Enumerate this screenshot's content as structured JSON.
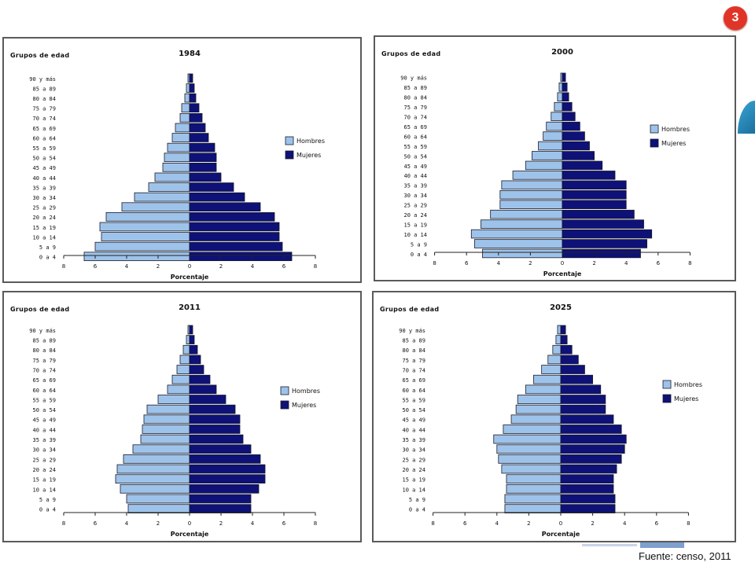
{
  "slide_number": "3",
  "source_note": "Fuente: censo, 2011",
  "colors": {
    "hombres": "#9ec3ea",
    "mujeres": "#0d1178",
    "edge": "#1a1a2a"
  },
  "chart_data": [
    {
      "type": "bar",
      "orientation": "horizontal-diverging",
      "title": "1984",
      "ylabel": "Grupos de edad",
      "xlabel": "Porcentaje",
      "xlim": [
        -8,
        8
      ],
      "x_tick_labels": [
        "8",
        "6",
        "4",
        "2",
        "0",
        "2",
        "4",
        "6",
        "8"
      ],
      "legend_position": "right",
      "categories": [
        "90 y más",
        "85 a 89",
        "80 a 84",
        "75 a 79",
        "70 a 74",
        "65 a 69",
        "60 a 64",
        "55 a 59",
        "50 a 54",
        "45 a 49",
        "40 a 44",
        "35 a 39",
        "30 a 34",
        "25 a 29",
        "20 a 24",
        "15 a 19",
        "10 a 14",
        "5 a 9",
        "0 a 4"
      ],
      "series": [
        {
          "name": "Hombres",
          "values": [
            0.1,
            0.2,
            0.3,
            0.5,
            0.6,
            0.9,
            1.1,
            1.4,
            1.6,
            1.7,
            2.2,
            2.6,
            3.5,
            4.3,
            5.3,
            5.7,
            5.6,
            6.0,
            6.7
          ]
        },
        {
          "name": "Mujeres",
          "values": [
            0.2,
            0.3,
            0.4,
            0.6,
            0.8,
            1.0,
            1.2,
            1.6,
            1.7,
            1.7,
            2.0,
            2.8,
            3.5,
            4.5,
            5.4,
            5.7,
            5.7,
            5.9,
            6.5
          ]
        }
      ]
    },
    {
      "type": "bar",
      "orientation": "horizontal-diverging",
      "title": "2000",
      "ylabel": "Grupos de edad",
      "xlabel": "Porcentaje",
      "xlim": [
        -8,
        8
      ],
      "x_tick_labels": [
        "8",
        "6",
        "4",
        "2",
        "0",
        "2",
        "4",
        "6",
        "8"
      ],
      "legend_position": "right",
      "categories": [
        "90 y más",
        "85 a 89",
        "80 a 84",
        "75 a 79",
        "70 a 74",
        "65 a 69",
        "60 a 64",
        "55 a 59",
        "50 a 54",
        "45 a 49",
        "40 a 44",
        "35 a 39",
        "30 a 34",
        "25 a 29",
        "20 a 24",
        "15 a 19",
        "10 a 14",
        "5 a 9",
        "0 a 4"
      ],
      "series": [
        {
          "name": "Hombres",
          "values": [
            0.1,
            0.2,
            0.3,
            0.5,
            0.7,
            1.0,
            1.2,
            1.5,
            1.9,
            2.3,
            3.1,
            3.8,
            3.9,
            3.9,
            4.5,
            5.1,
            5.7,
            5.5,
            5.0
          ]
        },
        {
          "name": "Mujeres",
          "values": [
            0.2,
            0.3,
            0.4,
            0.6,
            0.8,
            1.1,
            1.4,
            1.7,
            2.0,
            2.5,
            3.3,
            4.0,
            4.0,
            4.0,
            4.5,
            5.1,
            5.6,
            5.3,
            4.9
          ]
        }
      ]
    },
    {
      "type": "bar",
      "orientation": "horizontal-diverging",
      "title": "2011",
      "ylabel": "Grupos de edad",
      "xlabel": "Porcentaje",
      "xlim": [
        -8,
        8
      ],
      "x_tick_labels": [
        "8",
        "6",
        "4",
        "2",
        "0",
        "2",
        "4",
        "6",
        "8"
      ],
      "legend_position": "right",
      "categories": [
        "90 y más",
        "85 a 89",
        "80 a 84",
        "75 a 79",
        "70 a 74",
        "65 a 69",
        "60 a 64",
        "55 a 59",
        "50 a 54",
        "45 a 49",
        "40 a 44",
        "35 a 39",
        "30 a 34",
        "25 a 29",
        "20 a 24",
        "15 a 19",
        "10 a 14",
        "5 a 9",
        "0 a 4"
      ],
      "series": [
        {
          "name": "Hombres",
          "values": [
            0.1,
            0.2,
            0.4,
            0.6,
            0.8,
            1.1,
            1.4,
            2.0,
            2.7,
            2.9,
            3.0,
            3.1,
            3.6,
            4.2,
            4.6,
            4.7,
            4.4,
            4.0,
            3.9
          ]
        },
        {
          "name": "Mujeres",
          "values": [
            0.2,
            0.3,
            0.5,
            0.7,
            0.9,
            1.3,
            1.7,
            2.3,
            2.9,
            3.2,
            3.2,
            3.4,
            3.9,
            4.5,
            4.8,
            4.8,
            4.4,
            3.9,
            3.9
          ]
        }
      ]
    },
    {
      "type": "bar",
      "orientation": "horizontal-diverging",
      "title": "2025",
      "ylabel": "Grupos de edad",
      "xlabel": "Porcentaje",
      "xlim": [
        -8,
        8
      ],
      "x_tick_labels": [
        "8",
        "6",
        "4",
        "2",
        "0",
        "2",
        "4",
        "6",
        "8"
      ],
      "legend_position": "right",
      "categories": [
        "90 y más",
        "85 a 89",
        "80 a 84",
        "75 a 79",
        "70 a 74",
        "65 a 69",
        "60 a 64",
        "55 a 59",
        "50 a 54",
        "45 a 49",
        "40 a 44",
        "35 a 39",
        "30 a 34",
        "25 a 29",
        "20 a 24",
        "15 a 19",
        "10 a 14",
        "5 a 9",
        "0 a 4"
      ],
      "series": [
        {
          "name": "Hombres",
          "values": [
            0.2,
            0.3,
            0.5,
            0.8,
            1.2,
            1.7,
            2.2,
            2.7,
            2.8,
            3.1,
            3.6,
            4.2,
            4.0,
            3.9,
            3.7,
            3.4,
            3.4,
            3.5,
            3.5
          ]
        },
        {
          "name": "Mujeres",
          "values": [
            0.3,
            0.4,
            0.7,
            1.1,
            1.5,
            2.0,
            2.5,
            2.8,
            2.8,
            3.3,
            3.8,
            4.1,
            4.0,
            3.8,
            3.5,
            3.3,
            3.3,
            3.4,
            3.4
          ]
        }
      ]
    }
  ]
}
